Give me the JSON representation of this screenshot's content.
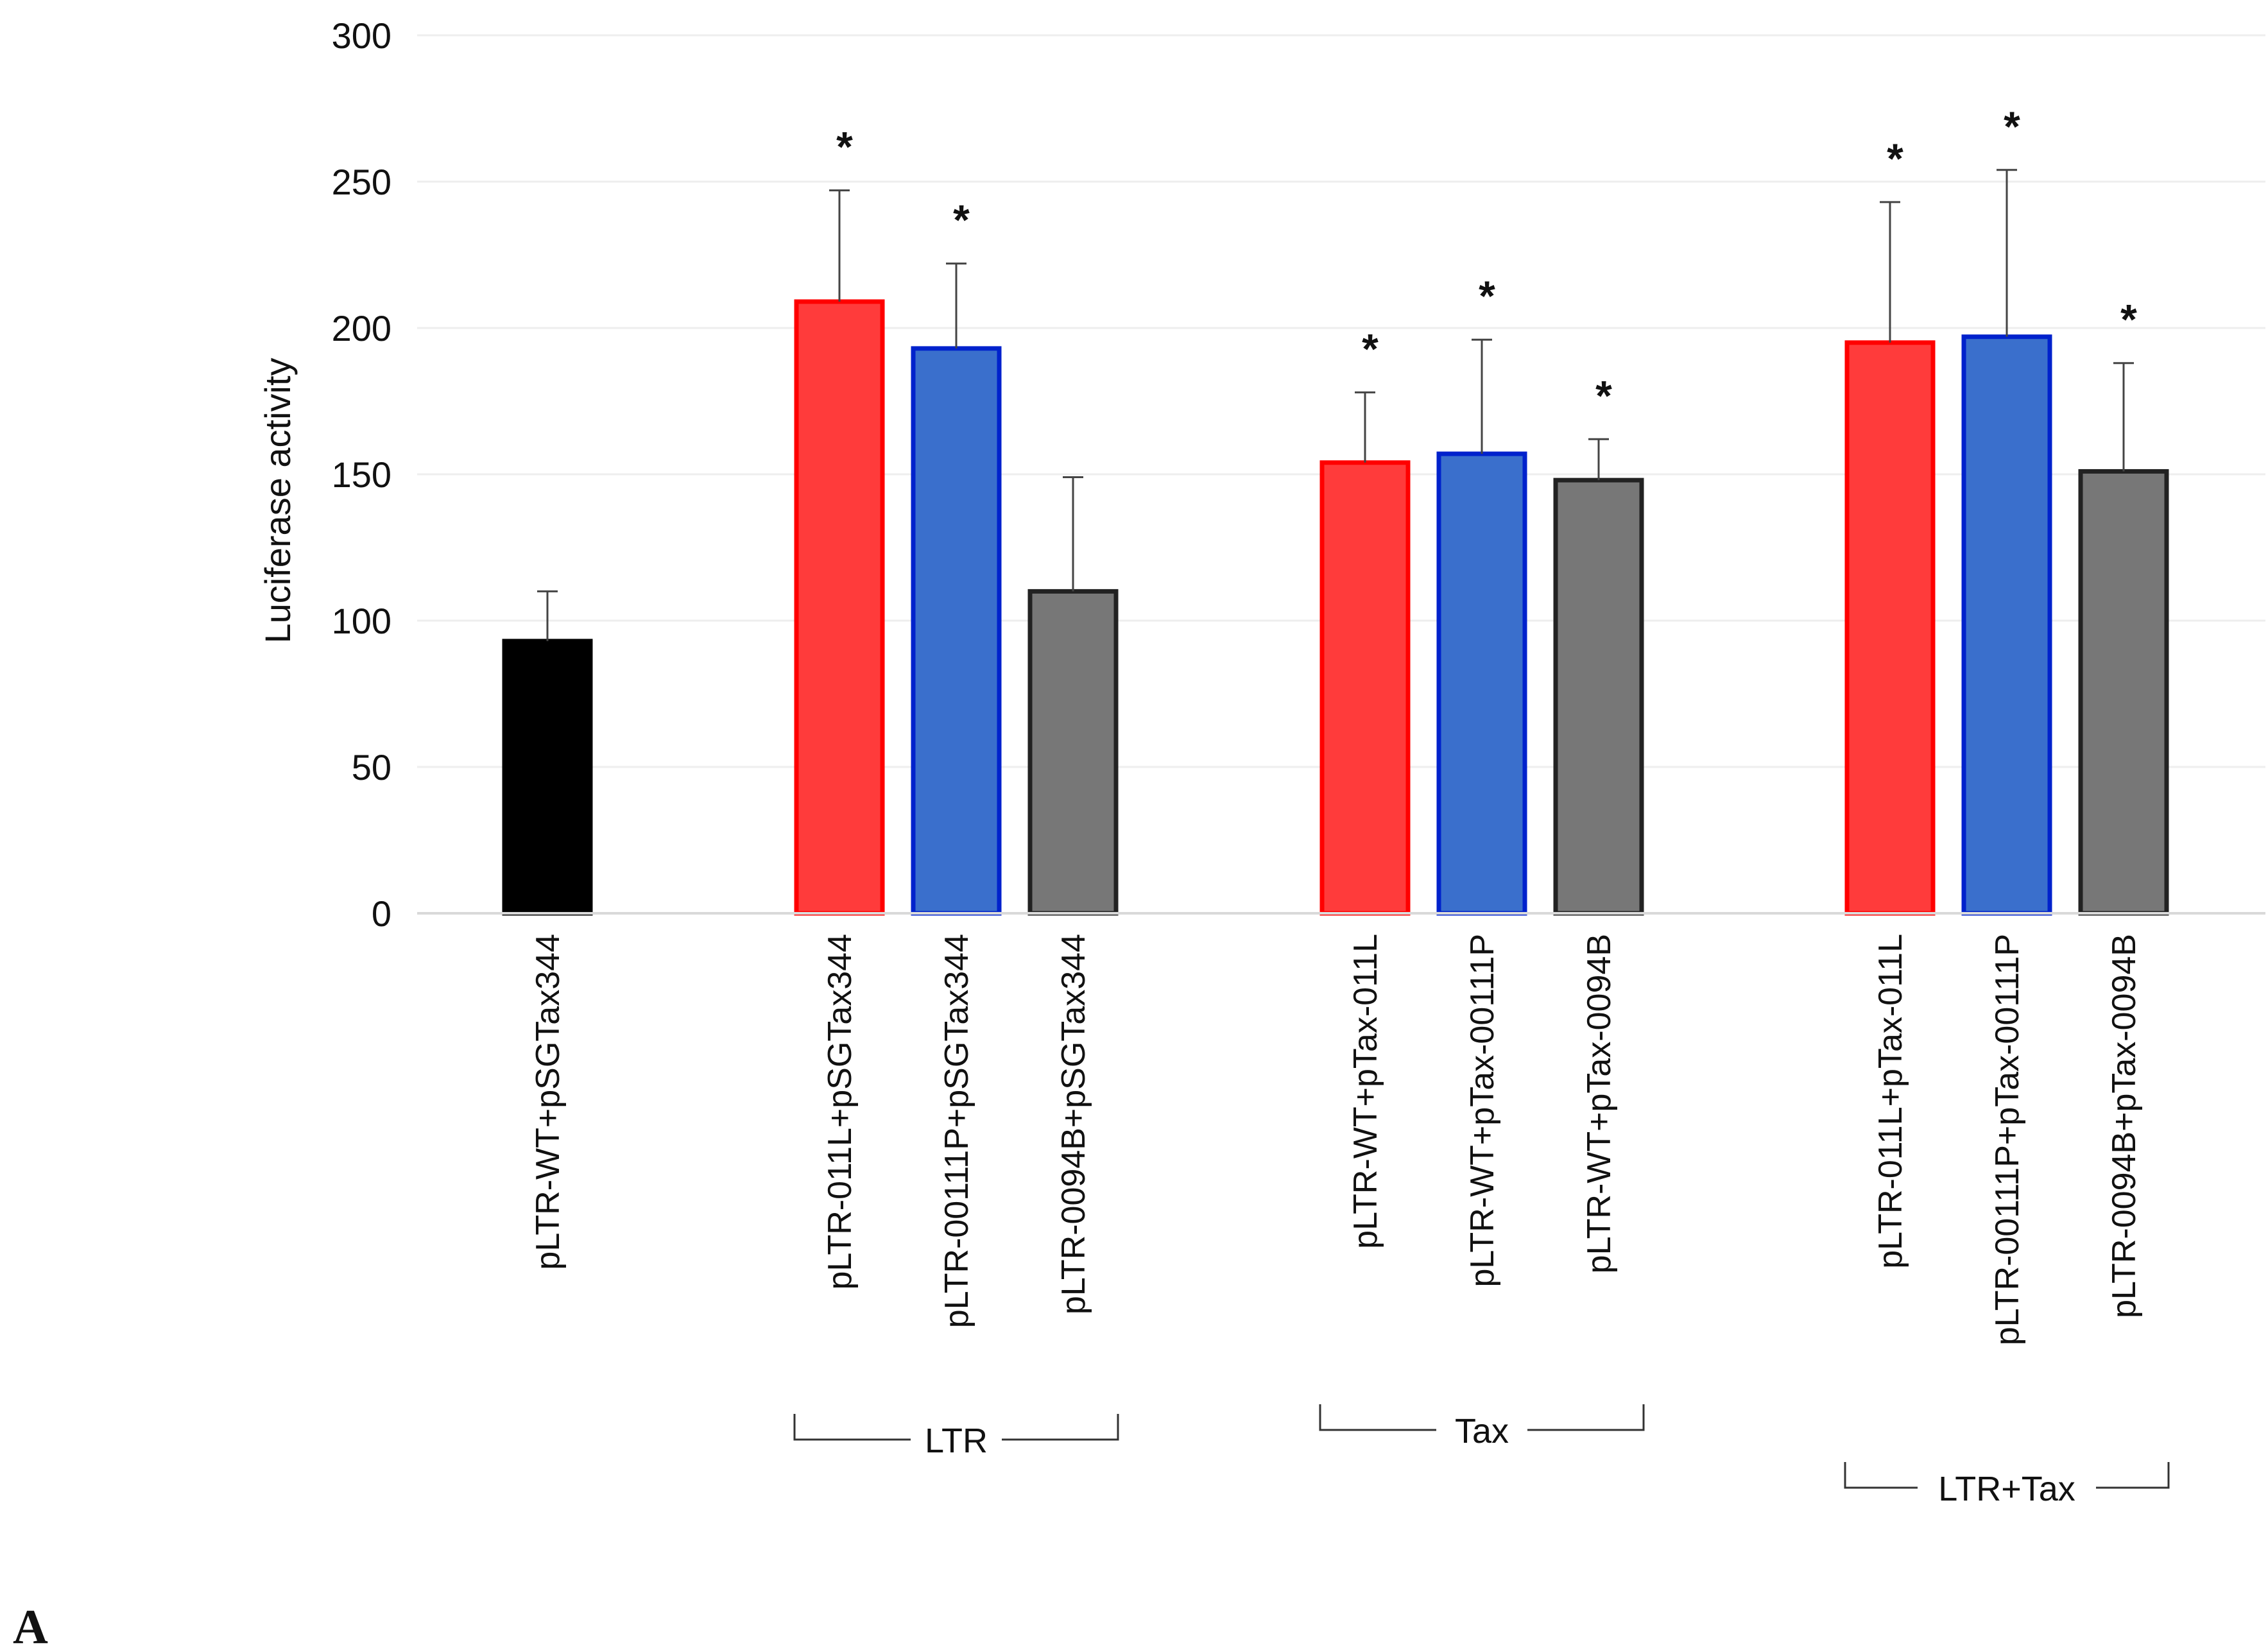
{
  "chart_data": {
    "type": "bar",
    "ylabel": "Luciferase activity",
    "ylim": [
      0,
      300
    ],
    "yticks": [
      0,
      50,
      100,
      150,
      200,
      250,
      300
    ],
    "grid": true,
    "panel_label": "A",
    "categories": [
      "pLTR-WT+pSGTax344",
      "pLTR-011L+pSGTax344",
      "pLTR-00111P+pSGTax344",
      "pLTR-0094B+pSGTax344",
      "pLTR-WT+pTax-011L",
      "pLTR-WT+pTax-00111P",
      "pLTR-WT+pTax-0094B",
      "pLTR-011L+pTax-011L",
      "pLTR-00111P+pTax-00111P",
      "pLTR-0094B+pTax-0094B"
    ],
    "values": [
      93,
      209,
      193,
      110,
      154,
      157,
      148,
      195,
      197,
      151
    ],
    "errors": [
      17,
      38,
      29,
      39,
      24,
      39,
      14,
      48,
      57,
      37
    ],
    "significant": [
      "",
      "*",
      "*",
      "",
      "*",
      "*",
      "*",
      "*",
      "*",
      "*"
    ],
    "colors": [
      "#000000",
      "#ff3b3b",
      "#3a6fcc",
      "#777777",
      "#ff3b3b",
      "#3a6fcc",
      "#777777",
      "#ff3b3b",
      "#3a6fcc",
      "#777777"
    ],
    "border_colors": [
      "#000000",
      "#ff0000",
      "#0022cc",
      "#222222",
      "#ff0000",
      "#0022cc",
      "#222222",
      "#ff0000",
      "#0022cc",
      "#222222"
    ],
    "groups": [
      {
        "label": "LTR",
        "members": [
          1,
          2,
          3
        ]
      },
      {
        "label": "Tax",
        "members": [
          4,
          5,
          6
        ]
      },
      {
        "label": "LTR+Tax",
        "members": [
          7,
          8,
          9
        ]
      }
    ]
  }
}
